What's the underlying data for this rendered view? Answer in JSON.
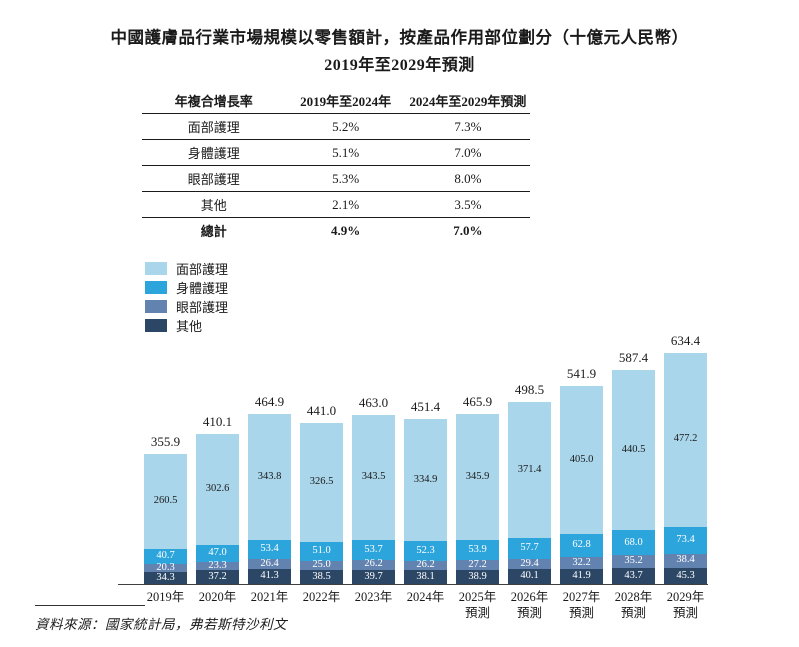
{
  "title": {
    "line1": "中國護膚品行業市場規模以零售額計，按產品作用部位劃分（十億元人民幣）",
    "line2": "2019年至2029年預測"
  },
  "cagr_table": {
    "headers": [
      "年複合增長率",
      "2019年至2024年",
      "2024年至2029年預測"
    ],
    "rows": [
      {
        "label": "面部護理",
        "p1": "5.2%",
        "p2": "7.3%"
      },
      {
        "label": "身體護理",
        "p1": "5.1%",
        "p2": "7.0%"
      },
      {
        "label": "眼部護理",
        "p1": "5.3%",
        "p2": "8.0%"
      },
      {
        "label": "其他",
        "p1": "2.1%",
        "p2": "3.5%"
      }
    ],
    "total_row": {
      "label": "總計",
      "p1": "4.9%",
      "p2": "7.0%"
    }
  },
  "legend": [
    {
      "label": "面部護理",
      "color": "#A9D6EB"
    },
    {
      "label": "身體護理",
      "color": "#2CA4DC"
    },
    {
      "label": "眼部護理",
      "color": "#6282B0"
    },
    {
      "label": "其他",
      "color": "#2C4766"
    }
  ],
  "chart_data": {
    "type": "bar",
    "stacked": true,
    "unit": "十億元人民幣",
    "categories": [
      "2019年",
      "2020年",
      "2021年",
      "2022年",
      "2023年",
      "2024年",
      "2025年預測",
      "2026年預測",
      "2027年預測",
      "2028年預測",
      "2029年預測"
    ],
    "category_lines": [
      [
        "2019年"
      ],
      [
        "2020年"
      ],
      [
        "2021年"
      ],
      [
        "2022年"
      ],
      [
        "2023年"
      ],
      [
        "2024年"
      ],
      [
        "2025年",
        "預測"
      ],
      [
        "2026年",
        "預測"
      ],
      [
        "2027年",
        "預測"
      ],
      [
        "2028年",
        "預測"
      ],
      [
        "2029年",
        "預測"
      ]
    ],
    "series": [
      {
        "name": "面部護理",
        "color": "#A9D6EB",
        "label_color": "#1a1a1a",
        "values": [
          260.5,
          302.6,
          343.8,
          326.5,
          343.5,
          334.9,
          345.9,
          371.4,
          405.0,
          440.5,
          477.2
        ]
      },
      {
        "name": "身體護理",
        "color": "#2CA4DC",
        "label_color": "#ffffff",
        "values": [
          40.7,
          47.0,
          53.4,
          51.0,
          53.7,
          52.3,
          53.9,
          57.7,
          62.8,
          68.0,
          73.4
        ]
      },
      {
        "name": "眼部護理",
        "color": "#6282B0",
        "label_color": "#ffffff",
        "values": [
          20.3,
          23.3,
          26.4,
          25.0,
          26.2,
          26.2,
          27.2,
          29.4,
          32.2,
          35.2,
          38.4
        ]
      },
      {
        "name": "其他",
        "color": "#2C4766",
        "label_color": "#ffffff",
        "values": [
          34.3,
          37.2,
          41.3,
          38.5,
          39.7,
          38.1,
          38.9,
          40.1,
          41.9,
          43.7,
          45.3
        ]
      }
    ],
    "totals": [
      355.9,
      410.1,
      464.9,
      441.0,
      463.0,
      451.4,
      465.9,
      498.5,
      541.9,
      587.4,
      634.4
    ],
    "stack_order_top_to_bottom": [
      "面部護理",
      "身體護理",
      "眼部護理",
      "其他"
    ],
    "ylim": [
      0,
      650
    ],
    "grid": false,
    "legend_position": "upper-left",
    "axis_color": "#3f3f3f"
  },
  "source": {
    "text": "資料來源：國家統計局，弗若斯特沙利文"
  }
}
